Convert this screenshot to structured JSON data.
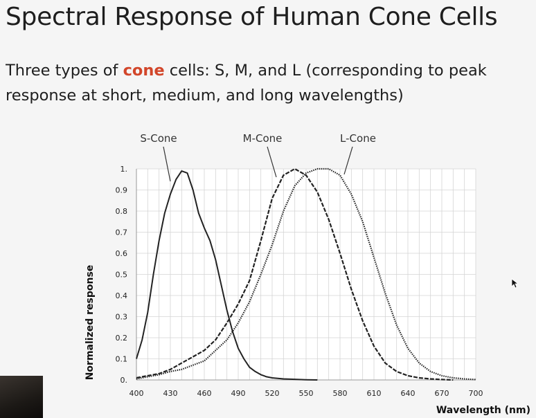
{
  "slide": {
    "title": "Spectral Response of Human Cone Cells",
    "body_before": "Three types of ",
    "body_highlight": "cone",
    "body_after": " cells: S, M, and L (corresponding to peak",
    "body_line2": "response at short, medium, and long wavelengths)"
  },
  "colors": {
    "accent": "#d2462a",
    "grid": "#d4d4d4",
    "curve": "#222222"
  },
  "chart_data": {
    "type": "line",
    "xlabel": "Wavelength (nm)",
    "ylabel": "Normalized response",
    "xlim": [
      400,
      700
    ],
    "ylim": [
      0,
      1
    ],
    "x_ticks": [
      "400",
      "430",
      "460",
      "490",
      "520",
      "550",
      "580",
      "610",
      "640",
      "670",
      "700"
    ],
    "y_ticks": [
      "0.",
      "0.1",
      "0.2",
      "0.3",
      "0.4",
      "0.5",
      "0.6",
      "0.7",
      "0.8",
      "0.9",
      "1."
    ],
    "grid": true,
    "series": [
      {
        "name": "S-Cone",
        "style": "solid",
        "x": [
          400,
          405,
          410,
          415,
          420,
          425,
          430,
          435,
          440,
          445,
          450,
          455,
          460,
          465,
          470,
          475,
          480,
          485,
          490,
          495,
          500,
          505,
          510,
          515,
          520,
          530,
          540,
          550,
          560
        ],
        "values": [
          0.1,
          0.19,
          0.32,
          0.5,
          0.66,
          0.79,
          0.88,
          0.95,
          0.99,
          0.98,
          0.9,
          0.79,
          0.72,
          0.66,
          0.57,
          0.45,
          0.33,
          0.23,
          0.15,
          0.1,
          0.06,
          0.04,
          0.025,
          0.015,
          0.01,
          0.005,
          0.003,
          0.001,
          0.0
        ]
      },
      {
        "name": "M-Cone",
        "style": "dashed",
        "x": [
          400,
          410,
          420,
          430,
          440,
          450,
          460,
          470,
          480,
          490,
          500,
          510,
          520,
          530,
          540,
          550,
          560,
          570,
          580,
          590,
          600,
          610,
          620,
          630,
          640,
          650,
          660,
          670,
          680
        ],
        "values": [
          0.01,
          0.02,
          0.03,
          0.05,
          0.08,
          0.11,
          0.14,
          0.19,
          0.27,
          0.36,
          0.47,
          0.66,
          0.86,
          0.97,
          1.0,
          0.97,
          0.89,
          0.76,
          0.6,
          0.43,
          0.28,
          0.16,
          0.08,
          0.04,
          0.02,
          0.01,
          0.005,
          0.002,
          0.0
        ]
      },
      {
        "name": "L-Cone",
        "style": "dotted",
        "x": [
          400,
          410,
          420,
          430,
          440,
          450,
          460,
          470,
          480,
          490,
          500,
          510,
          520,
          530,
          540,
          550,
          560,
          570,
          580,
          590,
          600,
          610,
          620,
          630,
          640,
          650,
          660,
          670,
          680,
          690,
          700
        ],
        "values": [
          0.005,
          0.015,
          0.025,
          0.04,
          0.05,
          0.07,
          0.09,
          0.14,
          0.19,
          0.27,
          0.37,
          0.5,
          0.64,
          0.8,
          0.92,
          0.98,
          1.0,
          1.0,
          0.97,
          0.88,
          0.75,
          0.58,
          0.41,
          0.26,
          0.15,
          0.08,
          0.04,
          0.02,
          0.01,
          0.005,
          0.002
        ]
      }
    ]
  }
}
